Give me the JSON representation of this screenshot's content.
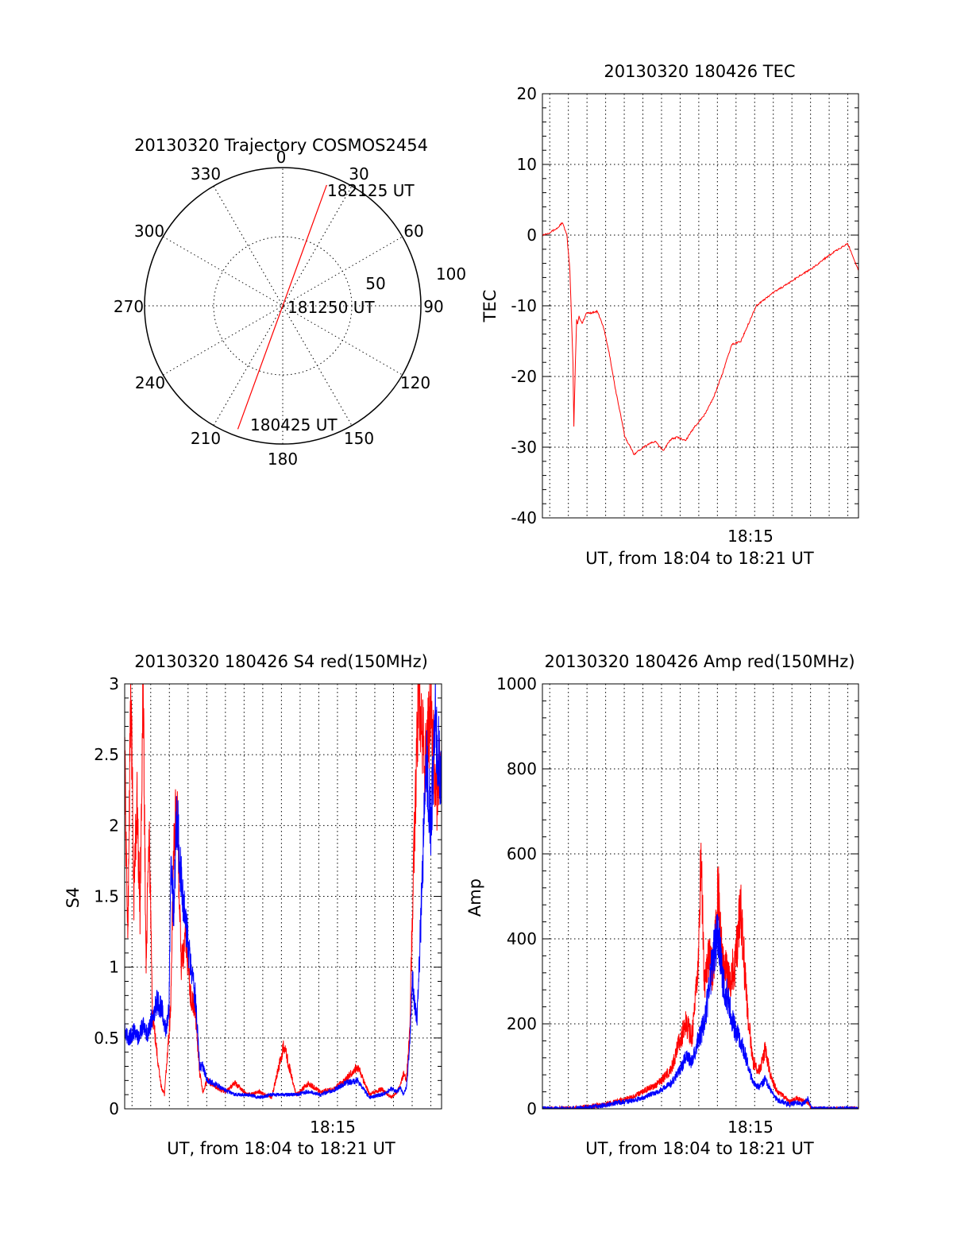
{
  "chart_data": [
    {
      "id": "trajectory",
      "type": "polar",
      "title": "20130320 Trajectory COSMOS2454",
      "angle_labels": [
        "0",
        "30",
        "60",
        "90",
        "120",
        "150",
        "180",
        "210",
        "240",
        "270",
        "300",
        "330"
      ],
      "radial_labels": [
        "50",
        "100"
      ],
      "rlim": [
        0,
        100
      ],
      "track": {
        "color": "#ff0000",
        "start": {
          "azimuth": 200,
          "elevation_r": 95,
          "label": "180425 UT"
        },
        "mid": {
          "azimuth": 0,
          "elevation_r": 0,
          "label": "181250 UT"
        },
        "end": {
          "azimuth": 20,
          "elevation_r": 93,
          "label": "182125 UT"
        }
      }
    },
    {
      "id": "tec",
      "type": "line",
      "title": "20130320 180426 TEC",
      "xlabel": "UT, from 18:04 to 18:21 UT",
      "ylabel": "TEC",
      "xlim": [
        0,
        1035
      ],
      "ylim": [
        -40,
        20
      ],
      "yticks": [
        "20",
        "10",
        "0",
        "-10",
        "-20",
        "-30",
        "-40"
      ],
      "xtick_label": "18:15",
      "xtick_value": 634,
      "series": [
        {
          "name": "TEC",
          "color": "#ff0000",
          "x": [
            0,
            20,
            50,
            65,
            80,
            90,
            100,
            103,
            108,
            112,
            115,
            120,
            130,
            145,
            160,
            180,
            200,
            220,
            240,
            270,
            300,
            330,
            350,
            370,
            395,
            410,
            420,
            440,
            470,
            500,
            530,
            560,
            590,
            620,
            650,
            680,
            700,
            730,
            760,
            800,
            840,
            880,
            910,
            940,
            970,
            1000,
            1035
          ],
          "y": [
            0,
            0.3,
            1,
            1.8,
            0,
            -5,
            -18,
            -27,
            -18,
            -12,
            -12.5,
            -11.5,
            -12.5,
            -11,
            -11,
            -10.8,
            -13,
            -17,
            -22,
            -28.5,
            -31,
            -30,
            -29.5,
            -29.2,
            -30.5,
            -29.5,
            -28.9,
            -28.6,
            -29,
            -27,
            -25.5,
            -23,
            -19.5,
            -15.5,
            -15,
            -12,
            -10,
            -9,
            -8,
            -7,
            -5.8,
            -4.8,
            -3.8,
            -2.8,
            -2,
            -1.2,
            -5
          ]
        }
      ]
    },
    {
      "id": "s4",
      "type": "line",
      "title": "20130320 180426 S4 red(150MHz)",
      "xlabel": "UT, from 18:04 to 18:21 UT",
      "ylabel": "S4",
      "xlim": [
        0,
        1035
      ],
      "ylim": [
        0,
        3
      ],
      "yticks": [
        "3",
        "2.5",
        "2",
        "1.5",
        "1",
        "0.5",
        "0"
      ],
      "xtick_label": "18:15",
      "xtick_value": 634,
      "series": [
        {
          "name": "red (150MHz)",
          "color": "#ff0000",
          "x": [
            0,
            10,
            20,
            30,
            40,
            50,
            60,
            70,
            80,
            90,
            100,
            110,
            120,
            130,
            140,
            150,
            160,
            170,
            185,
            200,
            215,
            230,
            245,
            255,
            270,
            300,
            330,
            360,
            400,
            440,
            480,
            520,
            560,
            600,
            640,
            680,
            720,
            760,
            800,
            840,
            870,
            890,
            900,
            910,
            920,
            930,
            945,
            960,
            980,
            1000,
            1020,
            1035
          ],
          "y": [
            2.5,
            1.2,
            3,
            1.5,
            2.2,
            1.4,
            3,
            1.0,
            2.0,
            0.7,
            0.5,
            0.3,
            0.15,
            0.1,
            0.4,
            0.7,
            1.8,
            2.2,
            1.0,
            1.2,
            0.8,
            0.7,
            0.25,
            0.12,
            0.2,
            0.15,
            0.12,
            0.18,
            0.1,
            0.12,
            0.08,
            0.45,
            0.1,
            0.18,
            0.12,
            0.14,
            0.2,
            0.3,
            0.1,
            0.14,
            0.08,
            0.12,
            0.16,
            0.25,
            0.2,
            0.5,
            1.8,
            3,
            2.4,
            2.8,
            2.2,
            2.6
          ]
        },
        {
          "name": "blue",
          "color": "#0000ff",
          "x": [
            0,
            15,
            30,
            45,
            60,
            75,
            90,
            105,
            120,
            135,
            145,
            150,
            160,
            170,
            185,
            200,
            215,
            230,
            245,
            255,
            270,
            300,
            330,
            360,
            400,
            440,
            480,
            520,
            560,
            600,
            640,
            680,
            720,
            760,
            800,
            840,
            870,
            890,
            900,
            910,
            920,
            930,
            940,
            955,
            970,
            985,
            1000,
            1015,
            1035
          ],
          "y": [
            0.55,
            0.5,
            0.55,
            0.5,
            0.6,
            0.52,
            0.65,
            0.75,
            0.72,
            0.55,
            0.7,
            1.7,
            1.4,
            2.1,
            1.6,
            1.3,
            1.0,
            0.8,
            0.3,
            0.3,
            0.2,
            0.17,
            0.13,
            0.1,
            0.1,
            0.08,
            0.1,
            0.1,
            0.1,
            0.12,
            0.1,
            0.13,
            0.18,
            0.2,
            0.08,
            0.1,
            0.14,
            0.12,
            0.15,
            0.1,
            0.15,
            0.4,
            0.9,
            0.6,
            1.5,
            2.5,
            2.0,
            2.7,
            2.3
          ]
        }
      ]
    },
    {
      "id": "amp",
      "type": "line",
      "title": "20130320 180426 Amp red(150MHz)",
      "xlabel": "UT, from 18:04 to 18:21 UT",
      "ylabel": "Amp",
      "xlim": [
        0,
        1035
      ],
      "ylim": [
        0,
        1000
      ],
      "yticks": [
        "1000",
        "800",
        "600",
        "400",
        "200",
        "0"
      ],
      "xtick_label": "18:15",
      "xtick_value": 634,
      "series": [
        {
          "name": "red (150MHz)",
          "color": "#ff0000",
          "x": [
            0,
            100,
            150,
            200,
            250,
            300,
            340,
            380,
            420,
            450,
            470,
            490,
            500,
            510,
            520,
            530,
            545,
            560,
            575,
            590,
            610,
            630,
            650,
            670,
            690,
            710,
            730,
            750,
            770,
            790,
            810,
            830,
            850,
            870,
            880,
            890,
            1035
          ],
          "y": [
            0,
            0,
            5,
            10,
            18,
            30,
            45,
            60,
            90,
            160,
            200,
            170,
            240,
            330,
            615,
            280,
            360,
            320,
            510,
            350,
            300,
            340,
            470,
            240,
            110,
            90,
            140,
            70,
            40,
            30,
            15,
            25,
            20,
            15,
            0,
            0,
            0
          ]
        },
        {
          "name": "blue",
          "color": "#0000ff",
          "x": [
            0,
            100,
            150,
            200,
            250,
            300,
            340,
            380,
            420,
            450,
            470,
            490,
            510,
            530,
            545,
            560,
            575,
            590,
            610,
            630,
            650,
            670,
            690,
            710,
            730,
            750,
            770,
            790,
            810,
            830,
            850,
            870,
            880,
            890,
            1035
          ],
          "y": [
            0,
            0,
            3,
            8,
            15,
            20,
            30,
            40,
            60,
            90,
            120,
            110,
            160,
            200,
            280,
            360,
            420,
            300,
            250,
            190,
            160,
            110,
            60,
            50,
            70,
            40,
            20,
            15,
            10,
            15,
            10,
            25,
            0,
            0,
            0
          ]
        }
      ]
    }
  ]
}
